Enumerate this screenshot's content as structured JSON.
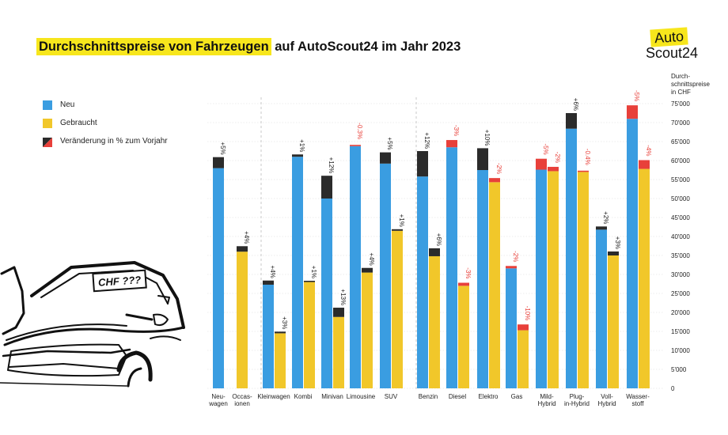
{
  "title": {
    "highlight": "Durchschnittspreise von Fahrzeugen",
    "rest": " auf AutoScout24 im Jahr 2023"
  },
  "logo": {
    "line1": "Auto",
    "line2": "Scout24"
  },
  "car_sign": "CHF ???",
  "colors": {
    "new": "#3a9de1",
    "used": "#f1c72a",
    "up": "#2b2b2b",
    "down": "#e8403a",
    "grid": "#d9d9d9",
    "highlight": "#f7e61c"
  },
  "legend": {
    "items": [
      {
        "label": "Neu",
        "type": "new"
      },
      {
        "label": "Gebraucht",
        "type": "used"
      },
      {
        "label": "Veränderung in % zum Vorjahr",
        "type": "change"
      }
    ]
  },
  "chart_data": {
    "type": "bar",
    "title": "Durchschnittspreise von Fahrzeugen auf AutoScout24 im Jahr 2023",
    "ylabel": "Durch-schnittspreise in CHF",
    "ylim": [
      0,
      75000
    ],
    "yticks": [
      "0",
      "5'000",
      "10'000",
      "15'000",
      "20'000",
      "25'000",
      "30'000",
      "35'000",
      "40'000",
      "45'000",
      "50'000",
      "55'000",
      "60'000",
      "65'000",
      "70'000",
      "75'000"
    ],
    "grid": true,
    "legend_position": "top-left",
    "groups": [
      {
        "label": "Neu-wagen",
        "bars": [
          {
            "series": "Neu",
            "value": 58000,
            "change": 5,
            "change_label": "+5%"
          }
        ]
      },
      {
        "label": "Occas-ionen",
        "bars": [
          {
            "series": "Gebraucht",
            "value": 36000,
            "change": 4,
            "change_label": "+4%"
          }
        ]
      },
      {
        "label": "Kleinwagen",
        "bars": [
          {
            "series": "Neu",
            "value": 27300,
            "change": 4,
            "change_label": "+4%"
          },
          {
            "series": "Gebraucht",
            "value": 14500,
            "change": 3,
            "change_label": "+3%"
          }
        ]
      },
      {
        "label": "Kombi",
        "bars": [
          {
            "series": "Neu",
            "value": 61000,
            "change": 1,
            "change_label": "+1%"
          },
          {
            "series": "Gebraucht",
            "value": 28000,
            "change": 1,
            "change_label": "+1%"
          }
        ]
      },
      {
        "label": "Minivan",
        "bars": [
          {
            "series": "Neu",
            "value": 50000,
            "change": 12,
            "change_label": "+12%"
          },
          {
            "series": "Gebraucht",
            "value": 18800,
            "change": 13,
            "change_label": "+13%"
          }
        ]
      },
      {
        "label": "Limousine",
        "bars": [
          {
            "series": "Neu",
            "value": 63800,
            "change": -0.3,
            "change_label": "-0.3%"
          },
          {
            "series": "Gebraucht",
            "value": 30500,
            "change": 4,
            "change_label": "+4%"
          }
        ]
      },
      {
        "label": "SUV",
        "bars": [
          {
            "series": "Neu",
            "value": 59200,
            "change": 5,
            "change_label": "+5%"
          },
          {
            "series": "Gebraucht",
            "value": 41500,
            "change": 1,
            "change_label": "+1%"
          }
        ]
      },
      {
        "label": "Benzin",
        "bars": [
          {
            "series": "Neu",
            "value": 55800,
            "change": 12,
            "change_label": "+12%"
          },
          {
            "series": "Gebraucht",
            "value": 34800,
            "change": 6,
            "change_label": "+6%"
          }
        ]
      },
      {
        "label": "Diesel",
        "bars": [
          {
            "series": "Neu",
            "value": 63500,
            "change": -3,
            "change_label": "-3%"
          },
          {
            "series": "Gebraucht",
            "value": 27000,
            "change": -3,
            "change_label": "-3%"
          }
        ]
      },
      {
        "label": "Elektro",
        "bars": [
          {
            "series": "Neu",
            "value": 57500,
            "change": 10,
            "change_label": "+10%"
          },
          {
            "series": "Gebraucht",
            "value": 54300,
            "change": -2,
            "change_label": "-2%"
          }
        ]
      },
      {
        "label": "Gas",
        "bars": [
          {
            "series": "Neu",
            "value": 31600,
            "change": -2,
            "change_label": "-2%"
          },
          {
            "series": "Gebraucht",
            "value": 15300,
            "change": -10,
            "change_label": "-10%"
          }
        ]
      },
      {
        "label": "Mild-Hybrid",
        "bars": [
          {
            "series": "Neu",
            "value": 57600,
            "change": -5,
            "change_label": "-5%"
          },
          {
            "series": "Gebraucht",
            "value": 57200,
            "change": -2,
            "change_label": "-2%"
          }
        ]
      },
      {
        "label": "Plug-in-Hybrid",
        "bars": [
          {
            "series": "Neu",
            "value": 68400,
            "change": 6,
            "change_label": "+6%"
          },
          {
            "series": "Gebraucht",
            "value": 57000,
            "change": -0.4,
            "change_label": "-0.4%"
          }
        ]
      },
      {
        "label": "Voll-Hybrid",
        "bars": [
          {
            "series": "Neu",
            "value": 41800,
            "change": 2,
            "change_label": "+2%"
          },
          {
            "series": "Gebraucht",
            "value": 35000,
            "change": 3,
            "change_label": "+3%"
          }
        ]
      },
      {
        "label": "Wasser-stoff",
        "bars": [
          {
            "series": "Neu",
            "value": 71000,
            "change": -5,
            "change_label": "-5%"
          },
          {
            "series": "Gebraucht",
            "value": 57800,
            "change": -4,
            "change_label": "-4%"
          }
        ]
      }
    ]
  }
}
